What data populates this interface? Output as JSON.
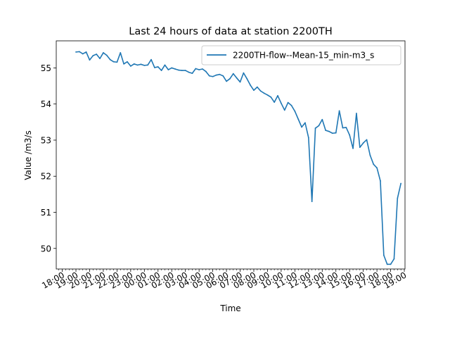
{
  "chart_data": {
    "type": "line",
    "title": "Last 24 hours of data at station 2200TH",
    "xlabel": "Time",
    "ylabel": "Value /m3/s",
    "ylim": [
      49.43,
      55.75
    ],
    "x_range_hours": [
      -0.44,
      25.05
    ],
    "x_tick_labels": [
      "18:00",
      "19:00",
      "20:00",
      "21:00",
      "22:00",
      "23:00",
      "00:00",
      "01:00",
      "02:00",
      "03:00",
      "04:00",
      "05:00",
      "06:00",
      "07:00",
      "08:00",
      "09:00",
      "10:00",
      "11:00",
      "12:00",
      "13:00",
      "14:00",
      "15:00",
      "16:00",
      "17:00",
      "18:00",
      "19:00"
    ],
    "y_ticks": [
      50,
      51,
      52,
      53,
      54,
      55
    ],
    "legend_position": "top-right",
    "grid": false,
    "series": [
      {
        "name": "2200TH-flow--Mean-15_min-m3_s",
        "color": "#1f77b4",
        "x_start_hours": 1.0,
        "x_step_hours": 0.25,
        "values": [
          55.44,
          55.45,
          55.39,
          55.44,
          55.22,
          55.34,
          55.38,
          55.26,
          55.42,
          55.35,
          55.23,
          55.17,
          55.16,
          55.42,
          55.11,
          55.17,
          55.05,
          55.11,
          55.08,
          55.1,
          55.07,
          55.08,
          55.23,
          55.01,
          55.03,
          54.93,
          55.08,
          54.95,
          55.0,
          54.97,
          54.94,
          54.93,
          54.93,
          54.88,
          54.85,
          54.98,
          54.95,
          54.97,
          54.9,
          54.78,
          54.76,
          54.8,
          54.82,
          54.78,
          54.63,
          54.7,
          54.84,
          54.72,
          54.61,
          54.86,
          54.7,
          54.52,
          54.38,
          54.47,
          54.36,
          54.3,
          54.25,
          54.19,
          54.05,
          54.23,
          54.02,
          53.83,
          54.04,
          53.96,
          53.8,
          53.58,
          53.36,
          53.48,
          53.07,
          51.3,
          53.33,
          53.4,
          53.57,
          53.27,
          53.24,
          53.19,
          53.2,
          53.81,
          53.34,
          53.35,
          53.14,
          52.77,
          53.74,
          52.8,
          52.92,
          53.01,
          52.58,
          52.33,
          52.23,
          51.87,
          49.81,
          49.56,
          49.56,
          49.71,
          51.39,
          51.8
        ]
      }
    ]
  }
}
